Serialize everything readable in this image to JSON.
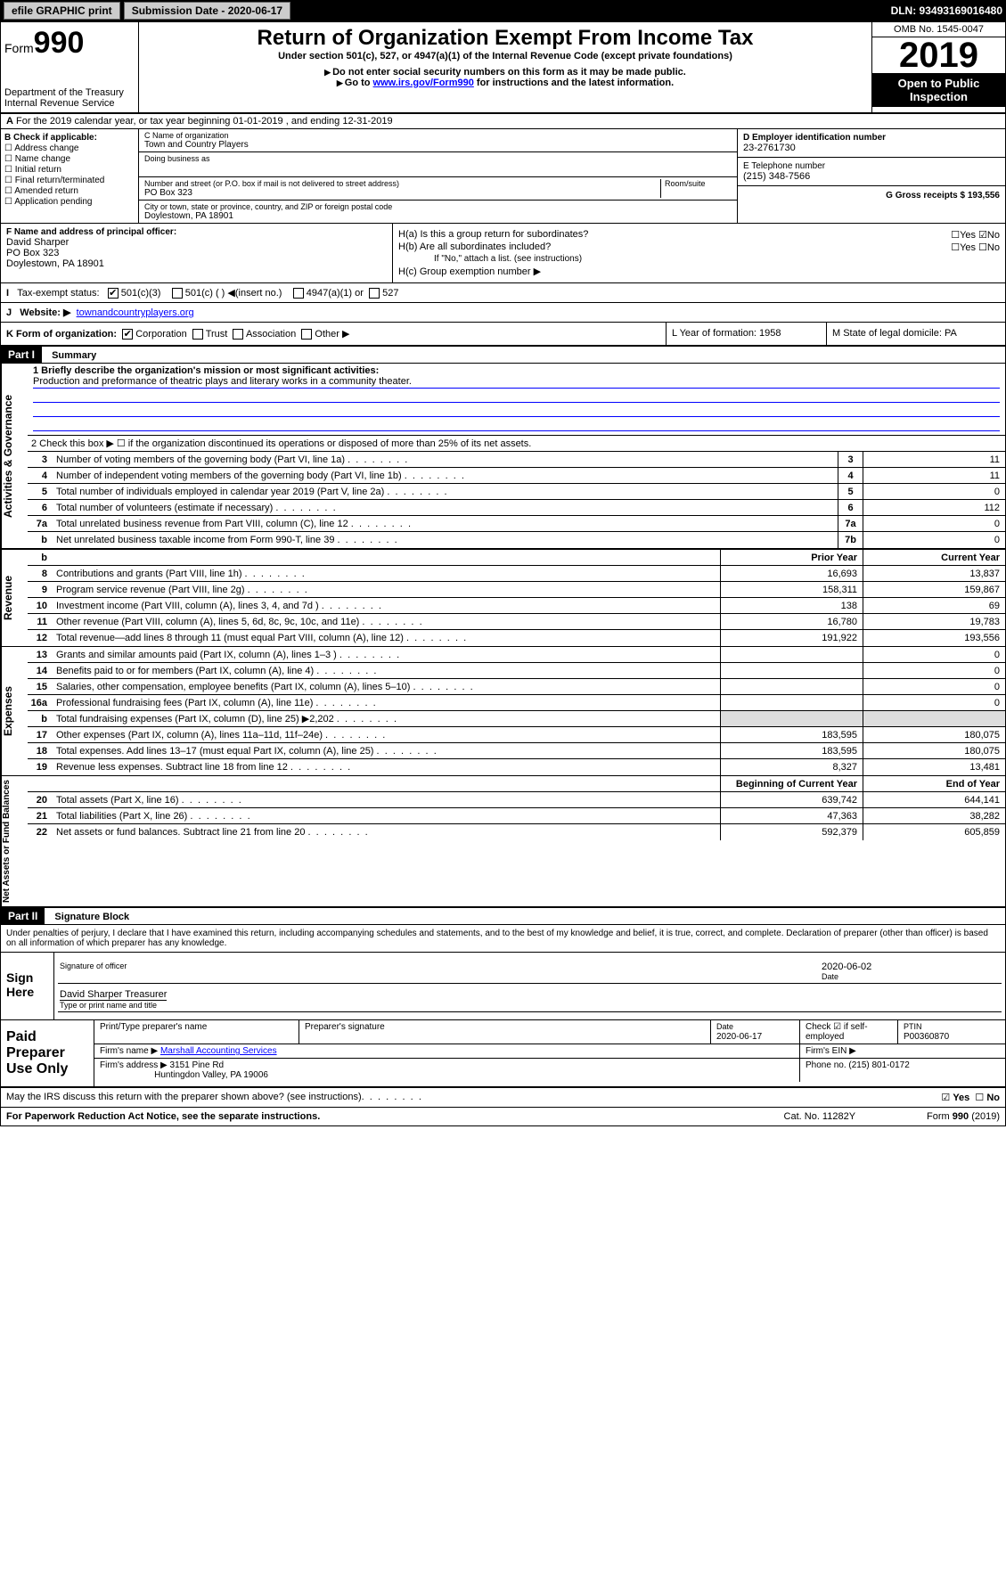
{
  "topbar": {
    "efile": "efile GRAPHIC print",
    "submission_label": "Submission Date - 2020-06-17",
    "dln": "DLN: 93493169016480"
  },
  "header": {
    "form_label": "Form",
    "form_num": "990",
    "dept": "Department of the Treasury",
    "irs": "Internal Revenue Service",
    "title": "Return of Organization Exempt From Income Tax",
    "subtitle": "Under section 501(c), 527, or 4947(a)(1) of the Internal Revenue Code (except private foundations)",
    "note1": "Do not enter social security numbers on this form as it may be made public.",
    "note2_pre": "Go to ",
    "note2_link": "www.irs.gov/Form990",
    "note2_post": " for instructions and the latest information.",
    "omb": "OMB No. 1545-0047",
    "year": "2019",
    "inspection": "Open to Public Inspection"
  },
  "line_a": "For the 2019 calendar year, or tax year beginning 01-01-2019    , and ending 12-31-2019",
  "section_b": {
    "label": "B Check if applicable:",
    "items": [
      "Address change",
      "Name change",
      "Initial return",
      "Final return/terminated",
      "Amended return",
      "Application pending"
    ]
  },
  "section_c": {
    "name_label": "C Name of organization",
    "name": "Town and Country Players",
    "dba_label": "Doing business as",
    "addr_label": "Number and street (or P.O. box if mail is not delivered to street address)",
    "room_label": "Room/suite",
    "addr": "PO Box 323",
    "city_label": "City or town, state or province, country, and ZIP or foreign postal code",
    "city": "Doylestown, PA  18901"
  },
  "section_d": {
    "label": "D Employer identification number",
    "value": "23-2761730"
  },
  "section_e": {
    "label": "E Telephone number",
    "value": "(215) 348-7566"
  },
  "section_g": {
    "label": "G Gross receipts $ 193,556"
  },
  "section_f": {
    "label": "F  Name and address of principal officer:",
    "name": "David Sharper",
    "addr1": "PO Box 323",
    "addr2": "Doylestown, PA  18901"
  },
  "section_h": {
    "ha": "H(a)  Is this a group return for subordinates?",
    "hb": "H(b)  Are all subordinates included?",
    "hb_note": "If \"No,\" attach a list. (see instructions)",
    "hc": "H(c)  Group exemption number ▶"
  },
  "section_i": {
    "label": "Tax-exempt status:",
    "opts": [
      "501(c)(3)",
      "501(c) (   ) ◀(insert no.)",
      "4947(a)(1) or",
      "527"
    ]
  },
  "section_j": {
    "label": "Website: ▶",
    "value": "townandcountryplayers.org"
  },
  "section_k": {
    "label": "K Form of organization:",
    "opts": [
      "Corporation",
      "Trust",
      "Association",
      "Other ▶"
    ]
  },
  "section_l": {
    "label": "L Year of formation: 1958"
  },
  "section_m": {
    "label": "M State of legal domicile: PA"
  },
  "part1": {
    "hdr": "Part I",
    "title": "Summary",
    "line1_label": "1  Briefly describe the organization's mission or most significant activities:",
    "line1_text": "Production and preformance of theatric plays and literary works in a community theater.",
    "line2": "2   Check this box ▶ ☐  if the organization discontinued its operations or disposed of more than 25% of its net assets.",
    "side_gov": "Activities & Governance",
    "side_rev": "Revenue",
    "side_exp": "Expenses",
    "side_net": "Net Assets or Fund Balances",
    "prior_hdr": "Prior Year",
    "current_hdr": "Current Year",
    "begin_hdr": "Beginning of Current Year",
    "end_hdr": "End of Year",
    "lines_gov": [
      {
        "n": "3",
        "d": "Number of voting members of the governing body (Part VI, line 1a)",
        "box": "3",
        "v": "11"
      },
      {
        "n": "4",
        "d": "Number of independent voting members of the governing body (Part VI, line 1b)",
        "box": "4",
        "v": "11"
      },
      {
        "n": "5",
        "d": "Total number of individuals employed in calendar year 2019 (Part V, line 2a)",
        "box": "5",
        "v": "0"
      },
      {
        "n": "6",
        "d": "Total number of volunteers (estimate if necessary)",
        "box": "6",
        "v": "112"
      },
      {
        "n": "7a",
        "d": "Total unrelated business revenue from Part VIII, column (C), line 12",
        "box": "7a",
        "v": "0"
      },
      {
        "n": "b",
        "d": "Net unrelated business taxable income from Form 990-T, line 39",
        "box": "7b",
        "v": "0"
      }
    ],
    "lines_rev": [
      {
        "n": "8",
        "d": "Contributions and grants (Part VIII, line 1h)",
        "p": "16,693",
        "c": "13,837"
      },
      {
        "n": "9",
        "d": "Program service revenue (Part VIII, line 2g)",
        "p": "158,311",
        "c": "159,867"
      },
      {
        "n": "10",
        "d": "Investment income (Part VIII, column (A), lines 3, 4, and 7d )",
        "p": "138",
        "c": "69"
      },
      {
        "n": "11",
        "d": "Other revenue (Part VIII, column (A), lines 5, 6d, 8c, 9c, 10c, and 11e)",
        "p": "16,780",
        "c": "19,783"
      },
      {
        "n": "12",
        "d": "Total revenue—add lines 8 through 11 (must equal Part VIII, column (A), line 12)",
        "p": "191,922",
        "c": "193,556"
      }
    ],
    "lines_exp": [
      {
        "n": "13",
        "d": "Grants and similar amounts paid (Part IX, column (A), lines 1–3 )",
        "p": "",
        "c": "0"
      },
      {
        "n": "14",
        "d": "Benefits paid to or for members (Part IX, column (A), line 4)",
        "p": "",
        "c": "0"
      },
      {
        "n": "15",
        "d": "Salaries, other compensation, employee benefits (Part IX, column (A), lines 5–10)",
        "p": "",
        "c": "0"
      },
      {
        "n": "16a",
        "d": "Professional fundraising fees (Part IX, column (A), line 11e)",
        "p": "",
        "c": "0"
      },
      {
        "n": "b",
        "d": "Total fundraising expenses (Part IX, column (D), line 25) ▶2,202",
        "p": "shaded",
        "c": "shaded"
      },
      {
        "n": "17",
        "d": "Other expenses (Part IX, column (A), lines 11a–11d, 11f–24e)",
        "p": "183,595",
        "c": "180,075"
      },
      {
        "n": "18",
        "d": "Total expenses. Add lines 13–17 (must equal Part IX, column (A), line 25)",
        "p": "183,595",
        "c": "180,075"
      },
      {
        "n": "19",
        "d": "Revenue less expenses. Subtract line 18 from line 12",
        "p": "8,327",
        "c": "13,481"
      }
    ],
    "lines_net": [
      {
        "n": "20",
        "d": "Total assets (Part X, line 16)",
        "p": "639,742",
        "c": "644,141"
      },
      {
        "n": "21",
        "d": "Total liabilities (Part X, line 26)",
        "p": "47,363",
        "c": "38,282"
      },
      {
        "n": "22",
        "d": "Net assets or fund balances. Subtract line 21 from line 20",
        "p": "592,379",
        "c": "605,859"
      }
    ]
  },
  "part2": {
    "hdr": "Part II",
    "title": "Signature Block",
    "perjury": "Under penalties of perjury, I declare that I have examined this return, including accompanying schedules and statements, and to the best of my knowledge and belief, it is true, correct, and complete. Declaration of preparer (other than officer) is based on all information of which preparer has any knowledge."
  },
  "sign": {
    "here": "Sign Here",
    "sig_officer": "Signature of officer",
    "date": "2020-06-02",
    "date_lbl": "Date",
    "name": "David Sharper Treasurer",
    "name_lbl": "Type or print name and title"
  },
  "paid": {
    "label": "Paid Preparer Use Only",
    "print_lbl": "Print/Type preparer's name",
    "sig_lbl": "Preparer's signature",
    "date_lbl": "Date",
    "date": "2020-06-17",
    "check_lbl": "Check ☑ if self-employed",
    "ptin_lbl": "PTIN",
    "ptin": "P00360870",
    "firm_name_lbl": "Firm's name    ▶",
    "firm_name": "Marshall Accounting Services",
    "ein_lbl": "Firm's EIN ▶",
    "firm_addr_lbl": "Firm's address ▶",
    "firm_addr1": "3151 Pine Rd",
    "firm_addr2": "Huntingdon Valley, PA  19006",
    "phone_lbl": "Phone no. (215) 801-0172"
  },
  "discuss": "May the IRS discuss this return with the preparer shown above? (see instructions)",
  "footer": {
    "left": "For Paperwork Reduction Act Notice, see the separate instructions.",
    "mid": "Cat. No. 11282Y",
    "right": "Form 990 (2019)"
  }
}
